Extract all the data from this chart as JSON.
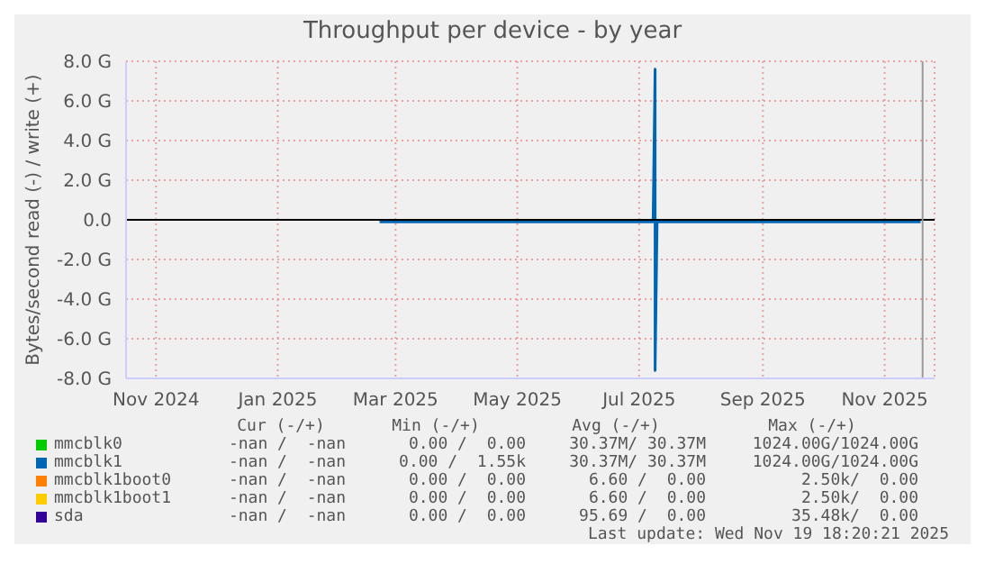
{
  "chart_data": {
    "type": "line",
    "title": "Throughput per device - by year",
    "ylabel": "Bytes/second read (-) / write (+)",
    "xlim": [
      "2024-10-17",
      "2025-11-26"
    ],
    "xticks": [
      {
        "value": "2024-11-01",
        "label": "Nov 2024"
      },
      {
        "value": "2025-01-01",
        "label": "Jan 2025"
      },
      {
        "value": "2025-03-01",
        "label": "Mar 2025"
      },
      {
        "value": "2025-05-01",
        "label": "May 2025"
      },
      {
        "value": "2025-07-01",
        "label": "Jul 2025"
      },
      {
        "value": "2025-09-01",
        "label": "Sep 2025"
      },
      {
        "value": "2025-11-01",
        "label": "Nov 2025"
      }
    ],
    "ylim": [
      -8,
      8
    ],
    "yticks": [
      {
        "value": -8,
        "label": "-8.0 G"
      },
      {
        "value": -6,
        "label": "-6.0 G"
      },
      {
        "value": -4,
        "label": "-4.0 G"
      },
      {
        "value": -2,
        "label": "-2.0 G"
      },
      {
        "value": 0,
        "label": "0.0"
      },
      {
        "value": 2,
        "label": "2.0 G"
      },
      {
        "value": 4,
        "label": "4.0 G"
      },
      {
        "value": 6,
        "label": "6.0 G"
      },
      {
        "value": 8,
        "label": "8.0 G"
      }
    ],
    "grid": true,
    "legend": "bottom",
    "marker": "none",
    "line_style": "solid",
    "series": [
      {
        "name": "mmcblk0",
        "color": "#00cc00"
      },
      {
        "name": "mmcblk1",
        "color": "#0066b3",
        "x": [
          "2025-02-21",
          "2025-07-08",
          "2025-07-09",
          "2025-07-09",
          "2025-07-10",
          "2025-11-19"
        ],
        "values": [
          -0.1,
          -0.1,
          7.6,
          -7.6,
          -0.1,
          -0.1
        ]
      },
      {
        "name": "mmcblk1boot0",
        "color": "#ff8000"
      },
      {
        "name": "mmcblk1boot1",
        "color": "#ffcc00"
      },
      {
        "name": "sda",
        "color": "#330099"
      }
    ],
    "ref_lines": [
      {
        "axis": "y",
        "value": 0,
        "color": "#000000"
      },
      {
        "axis": "x",
        "value": "2025-11-20",
        "color": "#999999"
      }
    ],
    "annotations": [
      "Cur (-/+)",
      "Min (-/+)",
      "Avg (-/+)",
      "Max (-/+)",
      "-nan /  -nan",
      "0.00 /  0.00",
      "30.37M/ 30.37M",
      "1024.00G/1024.00G",
      "-nan /  -nan",
      "0.00 /  1.55k",
      "30.37M/ 30.37M",
      "1024.00G/1024.00G",
      "-nan /  -nan",
      "0.00 /  0.00",
      "6.60 /  0.00",
      "2.50k/  0.00",
      "-nan /  -nan",
      "0.00 /  0.00",
      "6.60 /  0.00",
      "2.50k/  0.00",
      "-nan /  -nan",
      "0.00 /  0.00",
      "95.69 /  0.00",
      "35.48k/  0.00",
      "Last update: Wed Nov 19 18:20:21 2025"
    ]
  }
}
